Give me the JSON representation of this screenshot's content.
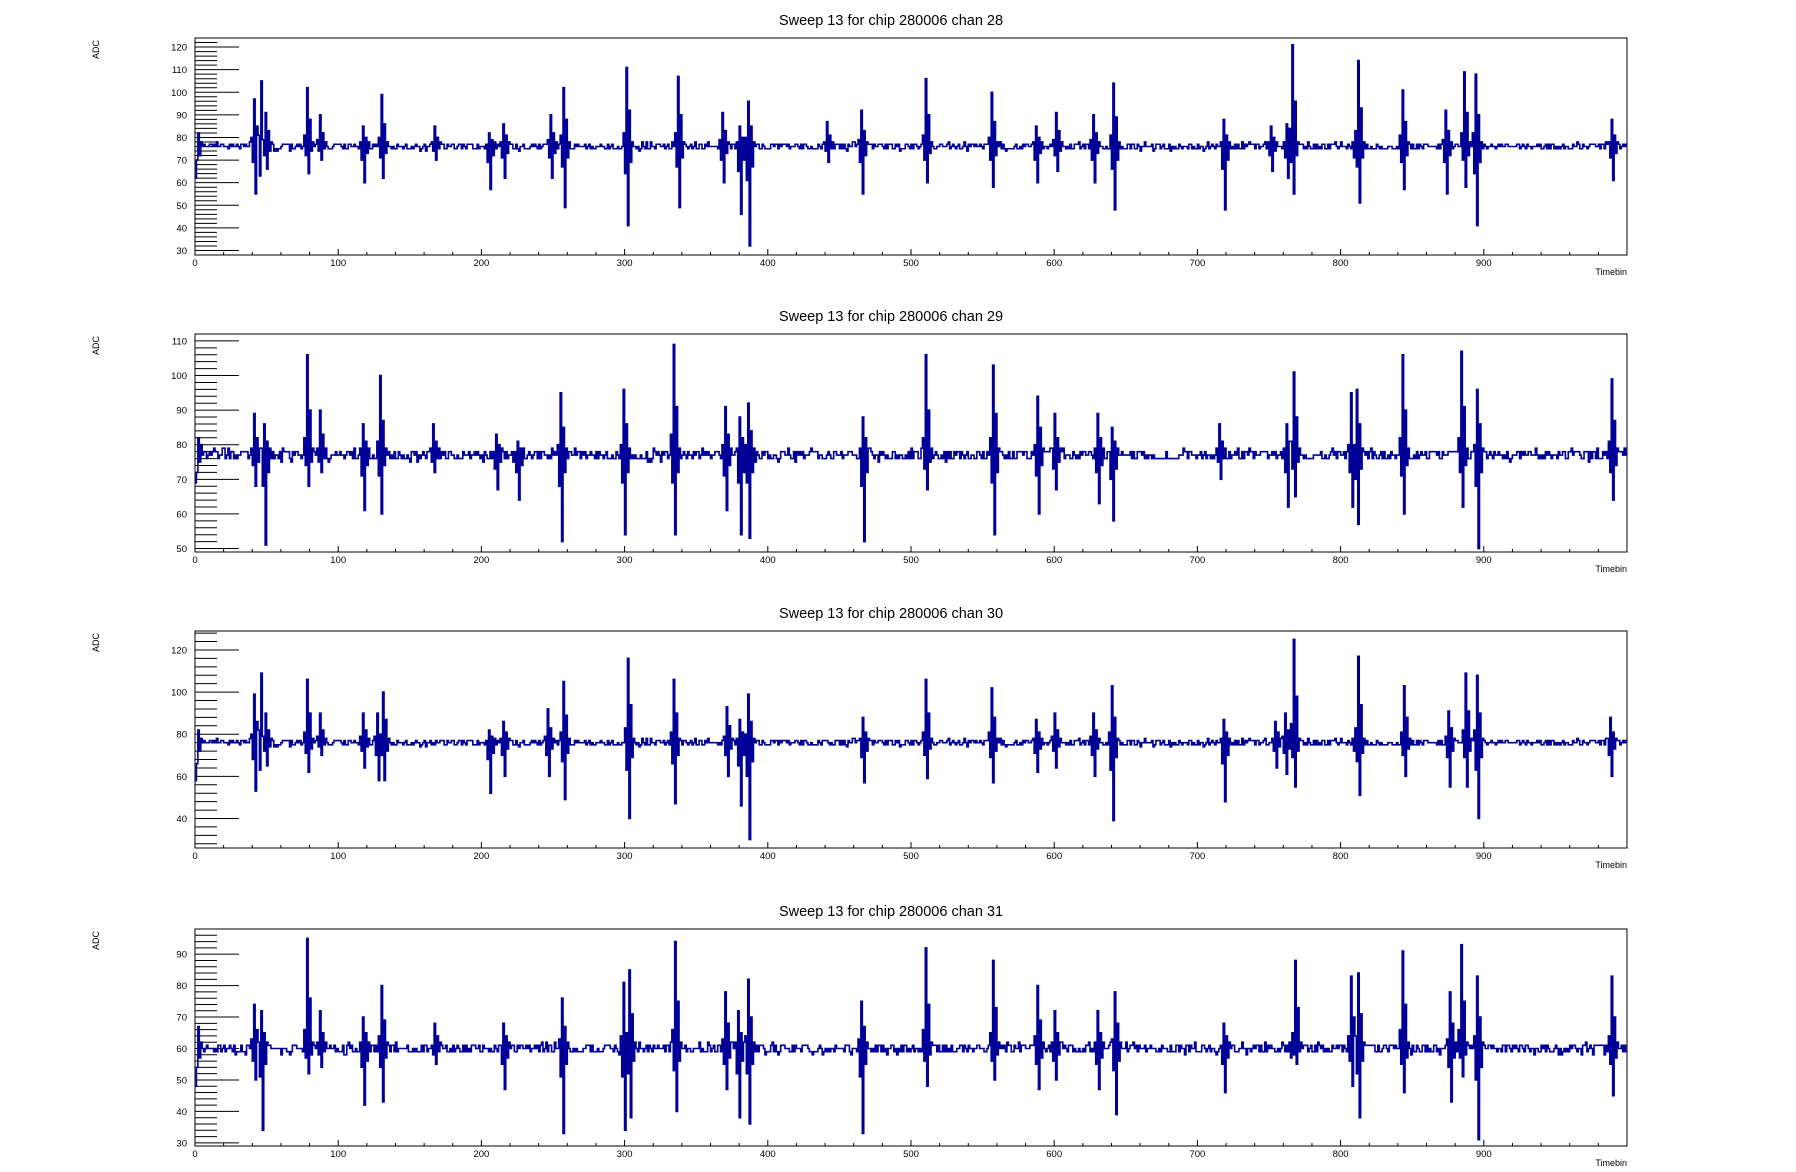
{
  "chart_data": [
    {
      "type": "line",
      "title": "Sweep 13 for chip 280006 chan 28",
      "xlabel": "Timebin",
      "ylabel": "ADC",
      "xlim": [
        0,
        1000
      ],
      "ylim": [
        28,
        124
      ],
      "xticks": [
        0,
        100,
        200,
        300,
        400,
        500,
        600,
        700,
        800,
        900
      ],
      "yticks": [
        30,
        40,
        50,
        60,
        70,
        80,
        90,
        100,
        110,
        120
      ],
      "line_color": "#000099",
      "baseline": 76,
      "start_ramp": [
        62,
        70,
        82,
        72,
        78,
        76
      ],
      "spikes": [
        [
          41,
          97,
          55
        ],
        [
          46,
          105,
          40
        ],
        [
          49,
          91,
          66
        ],
        [
          78,
          102,
          64
        ],
        [
          87,
          90,
          70
        ],
        [
          117,
          85,
          60
        ],
        [
          130,
          99,
          62
        ],
        [
          167,
          85,
          70
        ],
        [
          205,
          82,
          57
        ],
        [
          215,
          86,
          62
        ],
        [
          248,
          90,
          62
        ],
        [
          257,
          102,
          49
        ],
        [
          301,
          111,
          41
        ],
        [
          337,
          107,
          49
        ],
        [
          368,
          91,
          60
        ],
        [
          380,
          85,
          46
        ],
        [
          386,
          96,
          32
        ],
        [
          441,
          87,
          69
        ],
        [
          465,
          92,
          55
        ],
        [
          510,
          106,
          60
        ],
        [
          556,
          100,
          58
        ],
        [
          587,
          85,
          60
        ],
        [
          601,
          91,
          65
        ],
        [
          627,
          90,
          60
        ],
        [
          641,
          104,
          48
        ],
        [
          718,
          88,
          48
        ],
        [
          751,
          85,
          65
        ],
        [
          762,
          86,
          62
        ],
        [
          766,
          121,
          55
        ],
        [
          810,
          86,
          63
        ],
        [
          812,
          114,
          51
        ],
        [
          843,
          101,
          57
        ],
        [
          873,
          92,
          55
        ],
        [
          886,
          109,
          58
        ],
        [
          894,
          108,
          41
        ],
        [
          989,
          88,
          61
        ]
      ],
      "grid": false,
      "legend": "none"
    },
    {
      "type": "line",
      "title": "Sweep 13 for chip 280006 chan 29",
      "xlabel": "Timebin",
      "ylabel": "ADC",
      "xlim": [
        0,
        1000
      ],
      "ylim": [
        49,
        112
      ],
      "xticks": [
        0,
        100,
        200,
        300,
        400,
        500,
        600,
        700,
        800,
        900
      ],
      "yticks": [
        50,
        60,
        70,
        80,
        90,
        100,
        110
      ],
      "line_color": "#000099",
      "baseline": 77,
      "start_ramp": [
        69,
        72,
        82,
        75,
        80,
        77
      ],
      "spikes": [
        [
          41,
          89,
          68
        ],
        [
          48,
          86,
          51
        ],
        [
          78,
          106,
          68
        ],
        [
          87,
          90,
          72
        ],
        [
          117,
          86,
          61
        ],
        [
          129,
          100,
          60
        ],
        [
          166,
          86,
          72
        ],
        [
          210,
          83,
          67
        ],
        [
          225,
          81,
          64
        ],
        [
          255,
          95,
          52
        ],
        [
          299,
          96,
          54
        ],
        [
          334,
          109,
          54
        ],
        [
          370,
          91,
          61
        ],
        [
          380,
          88,
          54
        ],
        [
          386,
          92,
          53
        ],
        [
          466,
          88,
          52
        ],
        [
          510,
          106,
          67
        ],
        [
          557,
          103,
          54
        ],
        [
          588,
          94,
          60
        ],
        [
          600,
          89,
          67
        ],
        [
          630,
          89,
          63
        ],
        [
          640,
          85,
          58
        ],
        [
          715,
          86,
          70
        ],
        [
          762,
          86,
          62
        ],
        [
          767,
          101,
          65
        ],
        [
          807,
          95,
          62
        ],
        [
          811,
          96,
          57
        ],
        [
          843,
          106,
          60
        ],
        [
          884,
          107,
          62
        ],
        [
          895,
          96,
          50
        ],
        [
          989,
          99,
          64
        ]
      ],
      "grid": false,
      "legend": "none"
    },
    {
      "type": "line",
      "title": "Sweep 13 for chip 280006 chan 30",
      "xlabel": "Timebin",
      "ylabel": "ADC",
      "xlim": [
        0,
        1000
      ],
      "ylim": [
        26,
        129
      ],
      "xticks": [
        0,
        100,
        200,
        300,
        400,
        500,
        600,
        700,
        800,
        900
      ],
      "yticks": [
        40,
        60,
        80,
        100,
        120
      ],
      "line_color": "#000099",
      "baseline": 76,
      "start_ramp": [
        58,
        66,
        82,
        72,
        78,
        76
      ],
      "spikes": [
        [
          41,
          99,
          53
        ],
        [
          46,
          109,
          38
        ],
        [
          49,
          90,
          65
        ],
        [
          78,
          106,
          62
        ],
        [
          87,
          90,
          70
        ],
        [
          117,
          90,
          64
        ],
        [
          127,
          90,
          58
        ],
        [
          131,
          100,
          58
        ],
        [
          205,
          82,
          52
        ],
        [
          215,
          86,
          60
        ],
        [
          246,
          92,
          60
        ],
        [
          257,
          105,
          49
        ],
        [
          302,
          116,
          40
        ],
        [
          334,
          106,
          47
        ],
        [
          371,
          93,
          60
        ],
        [
          380,
          87,
          46
        ],
        [
          386,
          99,
          30
        ],
        [
          466,
          88,
          57
        ],
        [
          510,
          106,
          59
        ],
        [
          556,
          102,
          57
        ],
        [
          587,
          87,
          62
        ],
        [
          600,
          90,
          64
        ],
        [
          627,
          90,
          60
        ],
        [
          640,
          103,
          39
        ],
        [
          718,
          87,
          48
        ],
        [
          754,
          86,
          64
        ],
        [
          761,
          90,
          61
        ],
        [
          767,
          125,
          55
        ],
        [
          810,
          87,
          64
        ],
        [
          812,
          117,
          51
        ],
        [
          844,
          103,
          60
        ],
        [
          875,
          91,
          55
        ],
        [
          887,
          109,
          55
        ],
        [
          895,
          108,
          40
        ],
        [
          988,
          88,
          60
        ]
      ],
      "grid": false,
      "legend": "none"
    },
    {
      "type": "line",
      "title": "Sweep 13 for chip 280006 chan 31",
      "xlabel": "Timebin",
      "ylabel": "ADC",
      "xlim": [
        0,
        1000
      ],
      "ylim": [
        29,
        98
      ],
      "xticks": [
        0,
        100,
        200,
        300,
        400,
        500,
        600,
        700,
        800,
        900
      ],
      "yticks": [
        30,
        40,
        50,
        60,
        70,
        80,
        90
      ],
      "line_color": "#000099",
      "baseline": 60,
      "start_ramp": [
        48,
        54,
        67,
        57,
        62,
        60
      ],
      "spikes": [
        [
          41,
          74,
          50
        ],
        [
          46,
          72,
          34
        ],
        [
          78,
          95,
          52
        ],
        [
          87,
          72,
          54
        ],
        [
          117,
          70,
          42
        ],
        [
          130,
          80,
          43
        ],
        [
          167,
          68,
          55
        ],
        [
          215,
          68,
          47
        ],
        [
          256,
          76,
          33
        ],
        [
          299,
          81,
          34
        ],
        [
          303,
          85,
          38
        ],
        [
          335,
          94,
          40
        ],
        [
          370,
          78,
          47
        ],
        [
          379,
          72,
          38
        ],
        [
          386,
          82,
          36
        ],
        [
          465,
          75,
          33
        ],
        [
          510,
          92,
          48
        ],
        [
          557,
          88,
          50
        ],
        [
          588,
          80,
          47
        ],
        [
          600,
          72,
          50
        ],
        [
          630,
          72,
          47
        ],
        [
          642,
          78,
          39
        ],
        [
          718,
          68,
          46
        ],
        [
          766,
          73,
          51
        ],
        [
          768,
          88,
          55
        ],
        [
          807,
          83,
          48
        ],
        [
          812,
          84,
          38
        ],
        [
          843,
          91,
          46
        ],
        [
          876,
          78,
          43
        ],
        [
          884,
          93,
          51
        ],
        [
          895,
          83,
          31
        ],
        [
          989,
          83,
          45
        ]
      ],
      "grid": false,
      "legend": "none"
    }
  ]
}
